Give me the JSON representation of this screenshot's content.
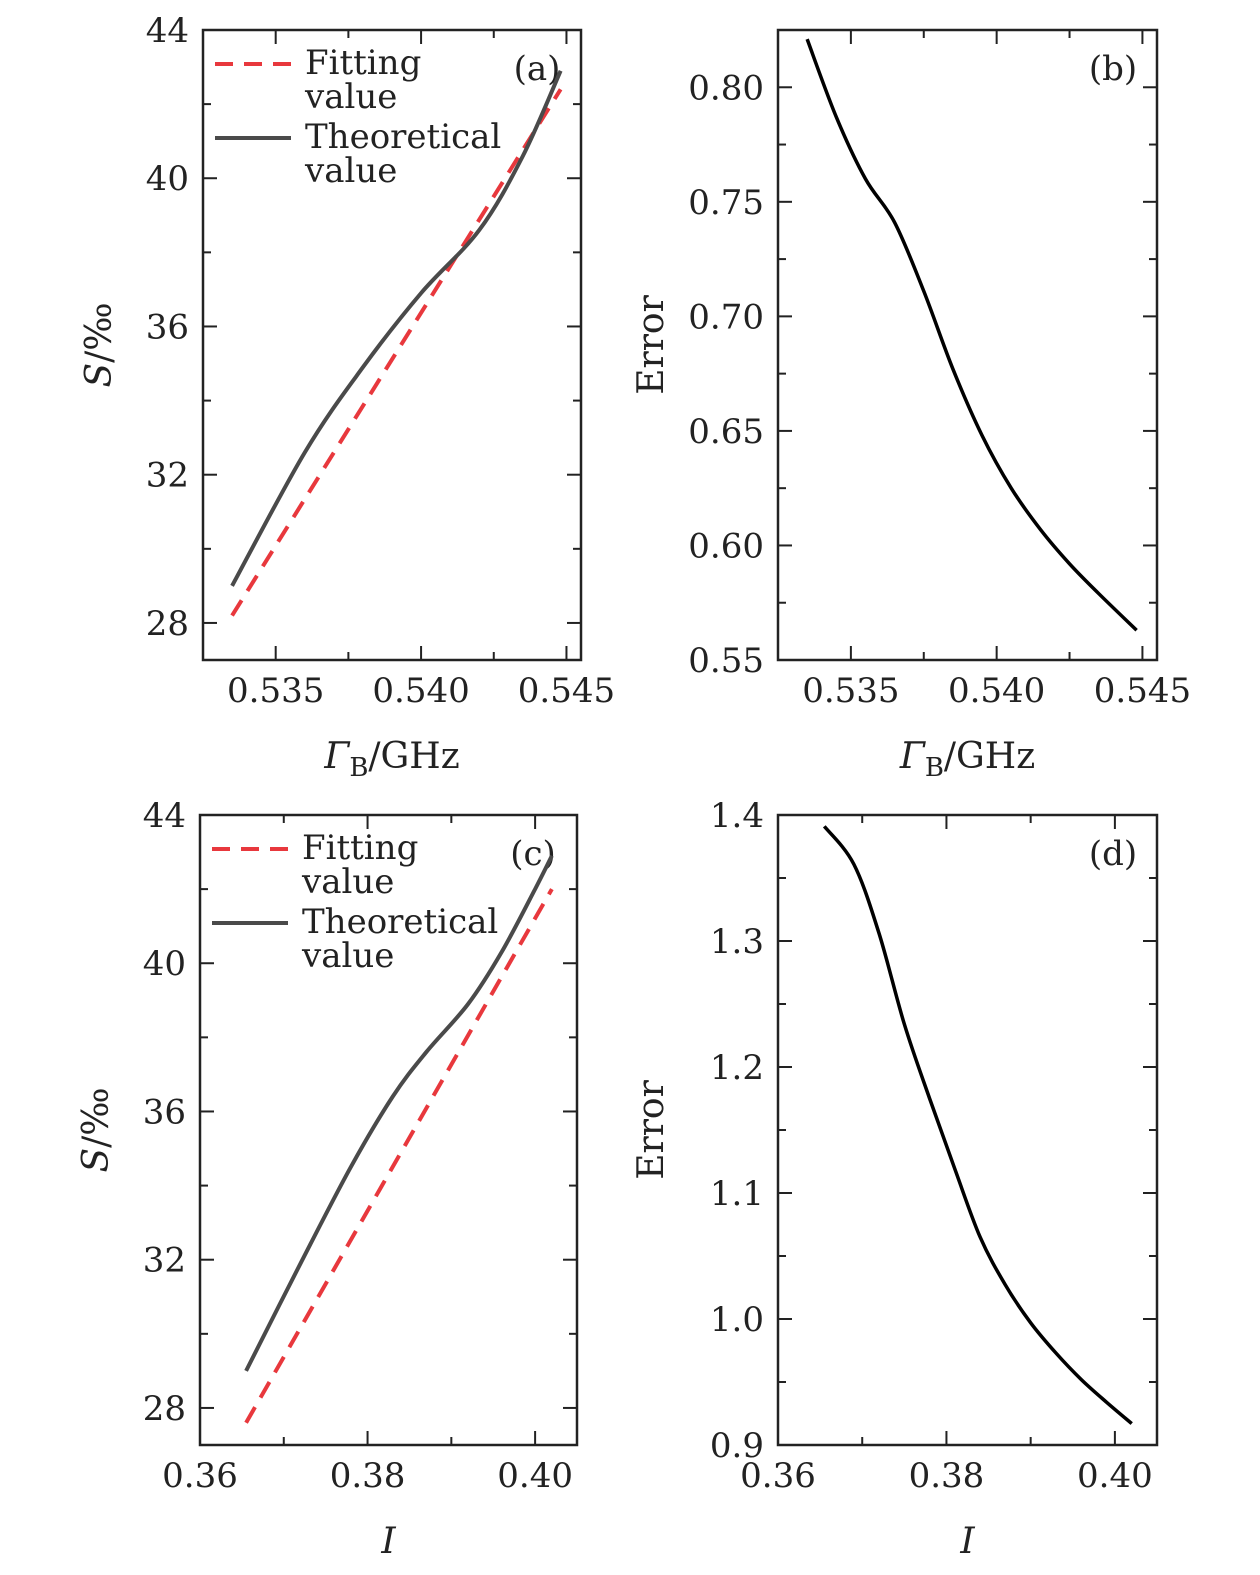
{
  "colors": {
    "fitting": "#e8383d",
    "theoretical": "#4a4a4a",
    "error": "#000000",
    "axis": "#222222"
  },
  "chart_data": [
    {
      "id": "a",
      "type": "line",
      "panel_label": "(a)",
      "xlabel": "ΓB/GHz",
      "xlabel_main": "Γ",
      "xlabel_sub": "B",
      "xlabel_unit": "/GHz",
      "ylabel": "S/‰",
      "ylabel_var": "S",
      "ylabel_unit": "/‰",
      "xlim": [
        0.5325,
        0.5455
      ],
      "ylim": [
        27,
        44
      ],
      "xticks": [
        0.535,
        0.54,
        0.545
      ],
      "xtick_labels": [
        "0.535",
        "0.540",
        "0.545"
      ],
      "yticks": [
        28,
        32,
        36,
        40,
        44
      ],
      "ytick_labels": [
        "28",
        "32",
        "36",
        "40",
        "44"
      ],
      "legend": {
        "position": "top-left",
        "entries": [
          {
            "line1": "Fitting",
            "line2": "value",
            "style": "dashed"
          },
          {
            "line1": "Theoretical",
            "line2": "value",
            "style": "solid"
          }
        ]
      },
      "series": [
        {
          "name": "Fitting value",
          "style": "dashed",
          "x": [
            0.5335,
            0.5448
          ],
          "y": [
            28.2,
            42.4
          ]
        },
        {
          "name": "Theoretical value",
          "style": "solid",
          "x": [
            0.5335,
            0.536,
            0.538,
            0.54,
            0.542,
            0.5435,
            0.5448
          ],
          "y": [
            29.0,
            32.6,
            34.9,
            36.9,
            38.6,
            40.6,
            42.9
          ]
        }
      ]
    },
    {
      "id": "b",
      "type": "line",
      "panel_label": "(b)",
      "xlabel": "ΓB/GHz",
      "xlabel_main": "Γ",
      "xlabel_sub": "B",
      "xlabel_unit": "/GHz",
      "ylabel": "Error",
      "xlim": [
        0.5325,
        0.5455
      ],
      "ylim": [
        0.55,
        0.825
      ],
      "xticks": [
        0.535,
        0.54,
        0.545
      ],
      "xtick_labels": [
        "0.535",
        "0.540",
        "0.545"
      ],
      "yticks": [
        0.55,
        0.6,
        0.65,
        0.7,
        0.75,
        0.8
      ],
      "ytick_labels": [
        "0.55",
        "0.60",
        "0.65",
        "0.70",
        "0.75",
        "0.80"
      ],
      "series": [
        {
          "style": "solid",
          "x": [
            0.5335,
            0.5345,
            0.5355,
            0.5365,
            0.5375,
            0.5385,
            0.5395,
            0.5405,
            0.5415,
            0.5425,
            0.5435,
            0.5448
          ],
          "y": [
            0.821,
            0.787,
            0.76,
            0.741,
            0.711,
            0.677,
            0.648,
            0.625,
            0.607,
            0.592,
            0.579,
            0.563
          ]
        }
      ]
    },
    {
      "id": "c",
      "type": "line",
      "panel_label": "(c)",
      "xlabel": "I",
      "ylabel": "S/‰",
      "ylabel_var": "S",
      "ylabel_unit": "/‰",
      "xlim": [
        0.36,
        0.405
      ],
      "ylim": [
        27,
        44
      ],
      "xticks": [
        0.36,
        0.38,
        0.4
      ],
      "xtick_labels": [
        "0.36",
        "0.38",
        "0.40"
      ],
      "yticks": [
        28,
        32,
        36,
        40,
        44
      ],
      "ytick_labels": [
        "28",
        "32",
        "36",
        "40",
        "44"
      ],
      "legend": {
        "position": "top-left",
        "entries": [
          {
            "line1": "Fitting",
            "line2": "value",
            "style": "dashed"
          },
          {
            "line1": "Theoretical",
            "line2": "value",
            "style": "solid"
          }
        ]
      },
      "series": [
        {
          "name": "Fitting value",
          "style": "dashed",
          "x": [
            0.3655,
            0.402
          ],
          "y": [
            27.6,
            42.0
          ]
        },
        {
          "name": "Theoretical value",
          "style": "solid",
          "x": [
            0.3655,
            0.372,
            0.378,
            0.383,
            0.387,
            0.392,
            0.396,
            0.4,
            0.402
          ],
          "y": [
            29.0,
            31.9,
            34.5,
            36.4,
            37.6,
            38.9,
            40.3,
            42.0,
            42.9
          ]
        }
      ]
    },
    {
      "id": "d",
      "type": "line",
      "panel_label": "(d)",
      "xlabel": "I",
      "ylabel": "Error",
      "xlim": [
        0.36,
        0.405
      ],
      "ylim": [
        0.9,
        1.4
      ],
      "xticks": [
        0.36,
        0.38,
        0.4
      ],
      "xtick_labels": [
        "0.36",
        "0.38",
        "0.40"
      ],
      "yticks": [
        0.9,
        1.0,
        1.1,
        1.2,
        1.3,
        1.4
      ],
      "ytick_labels": [
        "0.9",
        "1.0",
        "1.1",
        "1.2",
        "1.3",
        "1.4"
      ],
      "series": [
        {
          "style": "solid",
          "x": [
            0.3655,
            0.369,
            0.372,
            0.375,
            0.378,
            0.381,
            0.384,
            0.387,
            0.39,
            0.393,
            0.396,
            0.399,
            0.402
          ],
          "y": [
            1.391,
            1.361,
            1.306,
            1.234,
            1.175,
            1.119,
            1.065,
            1.027,
            0.997,
            0.973,
            0.952,
            0.934,
            0.917
          ]
        }
      ]
    }
  ]
}
